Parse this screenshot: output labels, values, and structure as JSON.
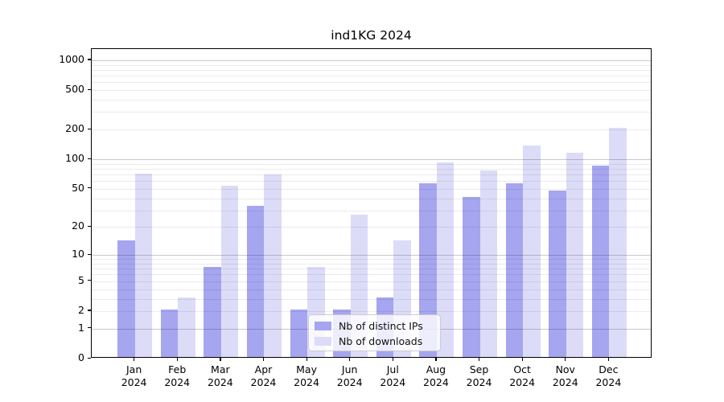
{
  "figure": {
    "background": "#ffffff"
  },
  "chart_data": {
    "type": "bar",
    "title": "ind1KG 2024",
    "categories": [
      "Jan",
      "Feb",
      "Mar",
      "Apr",
      "May",
      "Jun",
      "Jul",
      "Aug",
      "Sep",
      "Oct",
      "Nov",
      "Dec"
    ],
    "year": "2024",
    "series": [
      {
        "name": "Nb of distinct IPs",
        "color": "#a5a5f0",
        "values": [
          14,
          2,
          7,
          32,
          2,
          2,
          3,
          55,
          40,
          55,
          46,
          83
        ]
      },
      {
        "name": "Nb of downloads",
        "color": "#dcdcf8",
        "values": [
          69,
          3,
          52,
          68,
          7,
          26,
          14,
          90,
          74,
          133,
          113,
          200
        ]
      }
    ],
    "yscale": "log1p",
    "yticks": [
      0,
      1,
      2,
      5,
      10,
      20,
      50,
      100,
      200,
      500,
      1000
    ],
    "ylim": [
      0,
      1295
    ],
    "xlabel": "",
    "ylabel": "",
    "grid": "horizontal",
    "legend": {
      "position": "lower-center",
      "entries": [
        "Nb of distinct IPs",
        "Nb of downloads"
      ]
    },
    "colors": {
      "axis": "#000000",
      "text": "#000000",
      "major_grid": "#c3c3c3",
      "minor_grid": "#ebebeb"
    }
  }
}
